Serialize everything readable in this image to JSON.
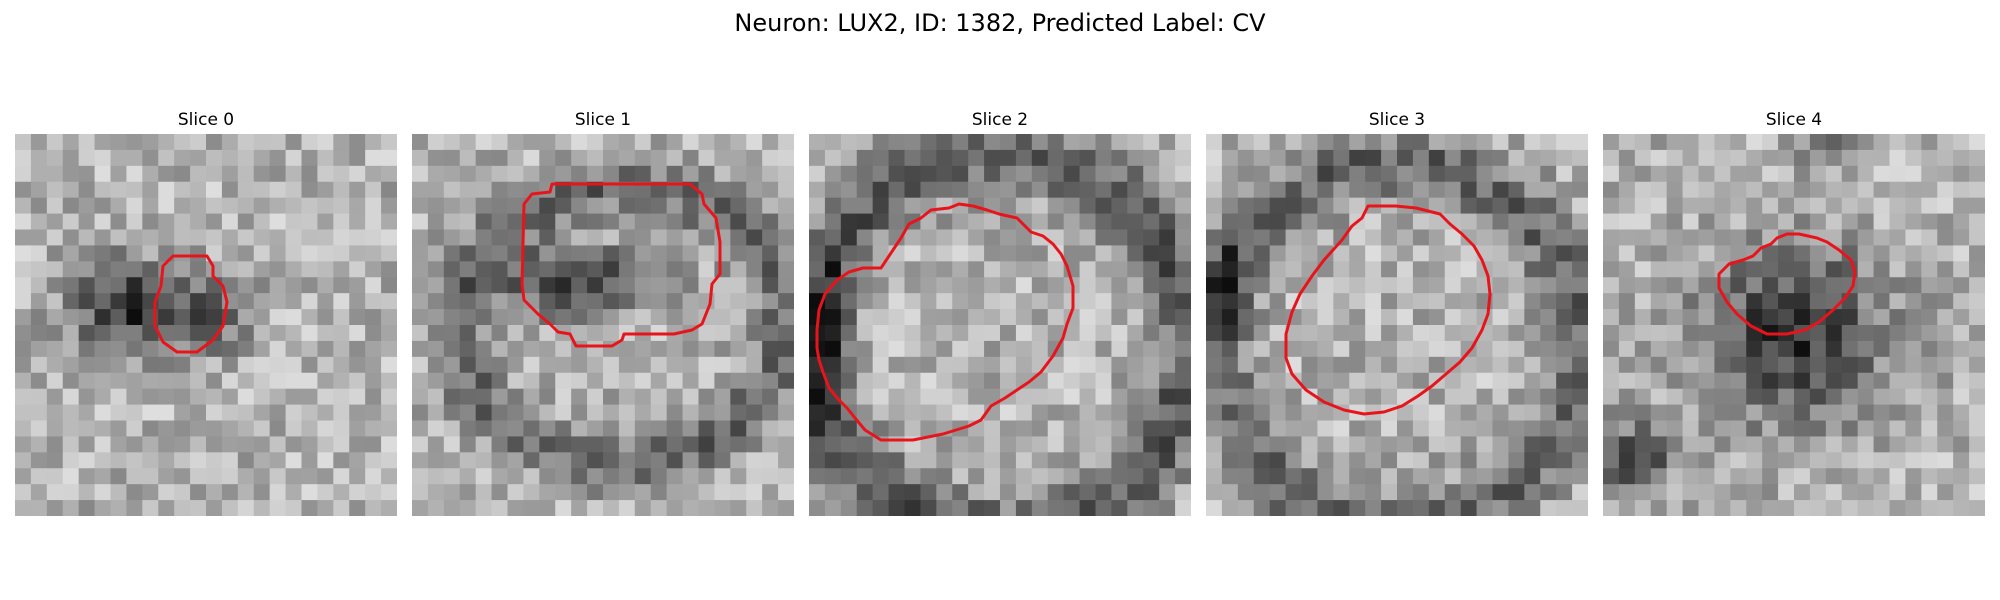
{
  "figure": {
    "title": "Neuron: LUX2, ID: 1382, Predicted Label: CV",
    "panels": [
      {
        "title": "Slice 0"
      },
      {
        "title": "Slice 1"
      },
      {
        "title": "Slice 2"
      },
      {
        "title": "Slice 3"
      },
      {
        "title": "Slice 4"
      }
    ],
    "contour_color": "#e8141c",
    "colormap": "grayscale"
  }
}
